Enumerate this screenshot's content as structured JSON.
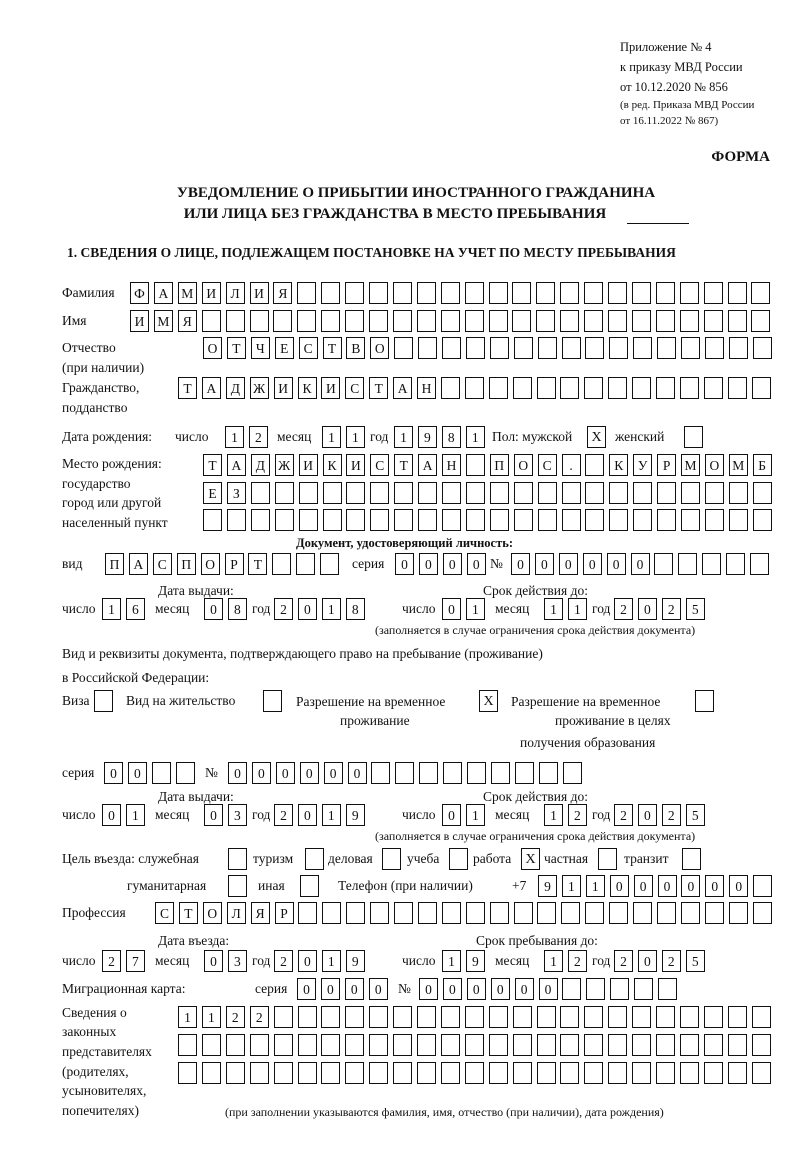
{
  "header": {
    "annex": [
      "Приложение № 4",
      "к приказу МВД России",
      "от 10.12.2020 № 856"
    ],
    "revision": [
      "(в ред. Приказа МВД России",
      "от 16.11.2022 № 867)"
    ],
    "forma": "ФОРМА",
    "title": [
      "УВЕДОМЛЕНИЕ О ПРИБЫТИИ ИНОСТРАННОГО ГРАЖДАНИНА",
      "ИЛИ ЛИЦА БЕЗ ГРАЖДАНСТВА В МЕСТО ПРЕБЫВАНИЯ"
    ],
    "section1": "1. СВЕДЕНИЯ О ЛИЦЕ, ПОДЛЕЖАЩЕМ ПОСТАНОВКЕ НА УЧЕТ ПО МЕСТУ ПРЕБЫВАНИЯ"
  },
  "person": {
    "surname": {
      "label": "Фамилия",
      "value": "ФАМИЛИЯ",
      "cells": 27
    },
    "name": {
      "label": "Имя",
      "value": "ИМЯ",
      "cells": 27
    },
    "patronymic": {
      "label": [
        "Отчество",
        "(при наличии)"
      ],
      "value": "ОТЧЕСТВО",
      "cells": 24
    },
    "citizenship": {
      "label": [
        "Гражданство,",
        "подданство"
      ],
      "value": "ТАДЖИКИСТАН",
      "cells": 25
    },
    "birth": {
      "label": "Дата рождения:",
      "day_label": "число",
      "day": "12",
      "month_label": "месяц",
      "month": "11",
      "year_label": "год",
      "year": "1981",
      "sex_label": "Пол: мужской",
      "male": "X",
      "female_label": "женский",
      "female": ""
    },
    "birthplace": {
      "label": [
        "Место рождения:",
        "государство",
        "город или другой",
        "населенный пункт"
      ],
      "rows": [
        {
          "value": "ТАДЖИКИСТАН ПОС. КУРМОМБ",
          "cells": 24
        },
        {
          "value": "ЕЗ",
          "cells": 24
        },
        {
          "value": "",
          "cells": 24
        }
      ]
    }
  },
  "identity_doc": {
    "heading": "Документ, удостоверяющий личность:",
    "kind_label": "вид",
    "kind": {
      "value": "ПАСПОРТ",
      "cells": 10
    },
    "series_label": "серия",
    "series": {
      "value": "0000",
      "cells": 4
    },
    "number_label": "№",
    "number": {
      "value": "000000",
      "cells": 11
    },
    "issued_label": "Дата выдачи:",
    "valid_label": "Срок действия до:",
    "issued": {
      "day": "16",
      "month": "08",
      "year": "2018"
    },
    "valid": {
      "day": "01",
      "month": "11",
      "year": "2025"
    },
    "note": "(заполняется в случае ограничения срока действия документа)"
  },
  "residence_doc": {
    "intro": [
      "Вид и реквизиты документа, подтверждающего право на пребывание (проживание)",
      "в Российской Федерации:"
    ],
    "options": {
      "visa": {
        "label": "Виза",
        "checked": ""
      },
      "residence_permit": {
        "label": "Вид на жительство",
        "checked": ""
      },
      "temp_residence": {
        "label": [
          "Разрешение на временное",
          "проживание"
        ],
        "checked": "X"
      },
      "temp_residence_edu": {
        "label": [
          "Разрешение на временное",
          "проживание в целях",
          "получения образования"
        ],
        "checked": ""
      }
    },
    "series_label": "серия",
    "series": {
      "value": "00",
      "cells": 4
    },
    "number_label": "№",
    "number": {
      "value": "000000",
      "cells": 15
    },
    "issued_label": "Дата выдачи:",
    "valid_label": "Срок действия до:",
    "issued": {
      "day": "01",
      "month": "03",
      "year": "2019"
    },
    "valid": {
      "day": "01",
      "month": "12",
      "year": "2025"
    },
    "note": "(заполняется в случае ограничения срока действия документа)"
  },
  "purpose": {
    "label": "Цель въезда: служебная",
    "service": "",
    "tourism_label": "туризм",
    "tourism": "",
    "business_label": "деловая",
    "business": "",
    "study_label": "учеба",
    "study": "",
    "work_label": "работа",
    "work": "X",
    "private_label": "частная",
    "private": "",
    "transit_label": "транзит",
    "transit": "",
    "humanitarian_label": "гуманитарная",
    "humanitarian": "",
    "other_label": "иная",
    "other": ""
  },
  "phone": {
    "label": "Телефон (при наличии)",
    "prefix": "+7",
    "value": "911000000",
    "cells": 10
  },
  "profession": {
    "label": "Профессия",
    "value": "СТОЛЯР",
    "cells": 26
  },
  "entry": {
    "entry_label": "Дата въезда:",
    "stay_label": "Срок пребывания до:",
    "entry": {
      "day": "27",
      "month": "03",
      "year": "2019"
    },
    "stay": {
      "day": "19",
      "month": "12",
      "year": "2025"
    }
  },
  "migration_card": {
    "label": "Миграционная карта:",
    "series_label": "серия",
    "series": {
      "value": "0000",
      "cells": 4
    },
    "number_label": "№",
    "number": {
      "value": "000000",
      "cells": 11
    }
  },
  "representatives": {
    "label": [
      "Сведения о",
      "законных",
      "представителях",
      "(родителях,",
      "усыновителях,",
      "попечителях)"
    ],
    "rows": [
      {
        "value": "1122",
        "cells": 25
      },
      {
        "value": "",
        "cells": 25
      },
      {
        "value": "",
        "cells": 25
      }
    ],
    "note": "(при заполнении указываются фамилия, имя, отчество (при наличии), дата рождения)"
  },
  "common": {
    "day_label": "число",
    "month_label": "месяц",
    "year_label": "год"
  }
}
